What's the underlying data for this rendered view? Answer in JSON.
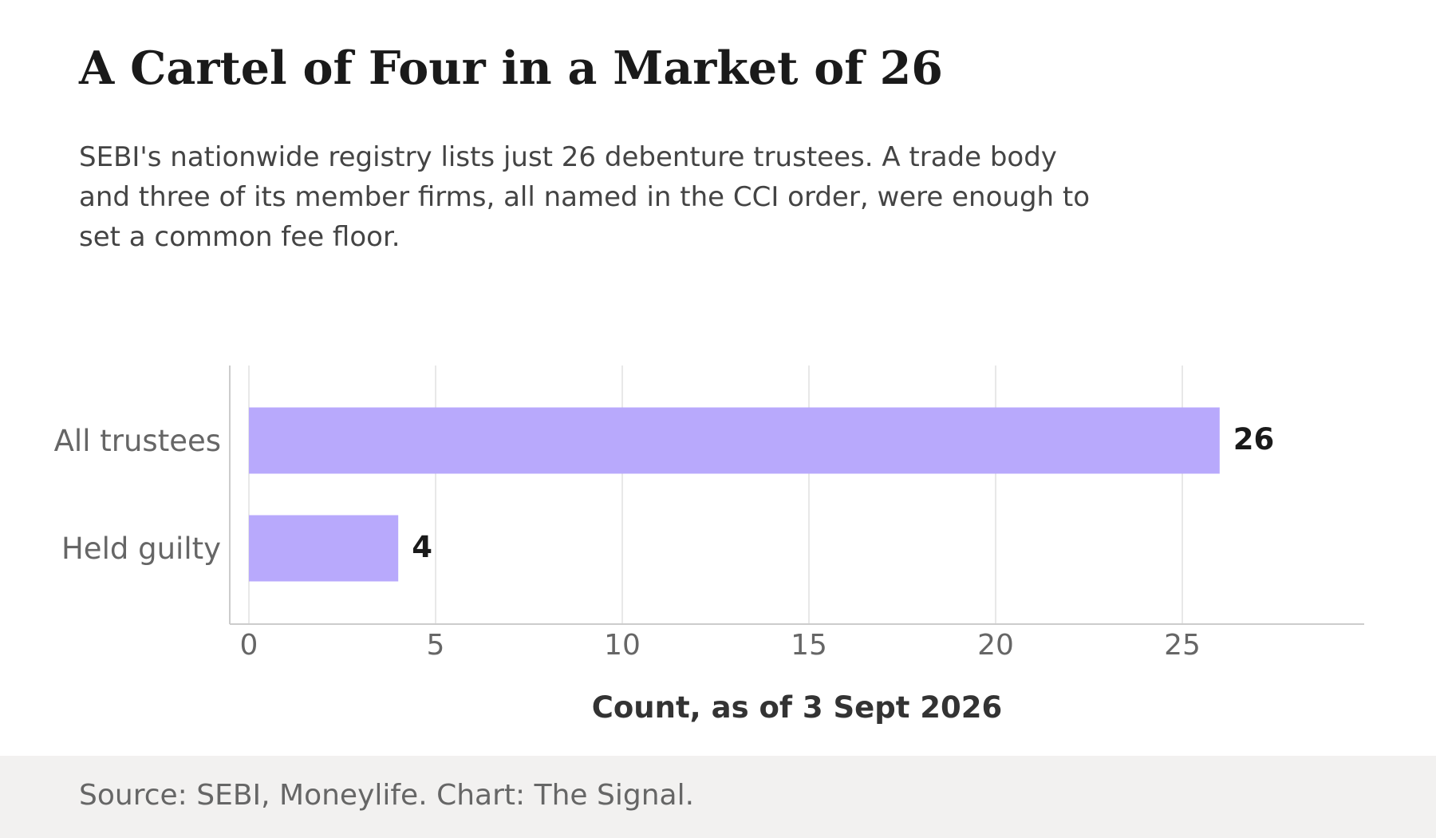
{
  "header": {
    "title": "A Cartel of Four in a Market of 26",
    "subtitle": "SEBI's nationwide registry lists just 26 debenture trustees. A trade body and three of its member firms, all named in the CCI order, were enough to set a common fee floor."
  },
  "chart_data": {
    "type": "bar",
    "orientation": "horizontal",
    "categories": [
      "All trustees",
      "Held guilty"
    ],
    "values": [
      26,
      4
    ],
    "xlabel": "Count, as of 3 Sept 2026",
    "ylabel": "",
    "xlim": [
      0,
      30
    ],
    "xticks": [
      0,
      5,
      10,
      15,
      20,
      25
    ],
    "grid": "vertical",
    "data_labels": true,
    "colors": {
      "bar": "#b8a9fc",
      "grid": "#e0e0e0",
      "axis": "#cccccc",
      "tick_label": "#666666",
      "value_label": "#1a1a1a",
      "axis_title": "#333333"
    }
  },
  "footer": {
    "source": "Source: SEBI, Moneylife. Chart: The Signal."
  }
}
